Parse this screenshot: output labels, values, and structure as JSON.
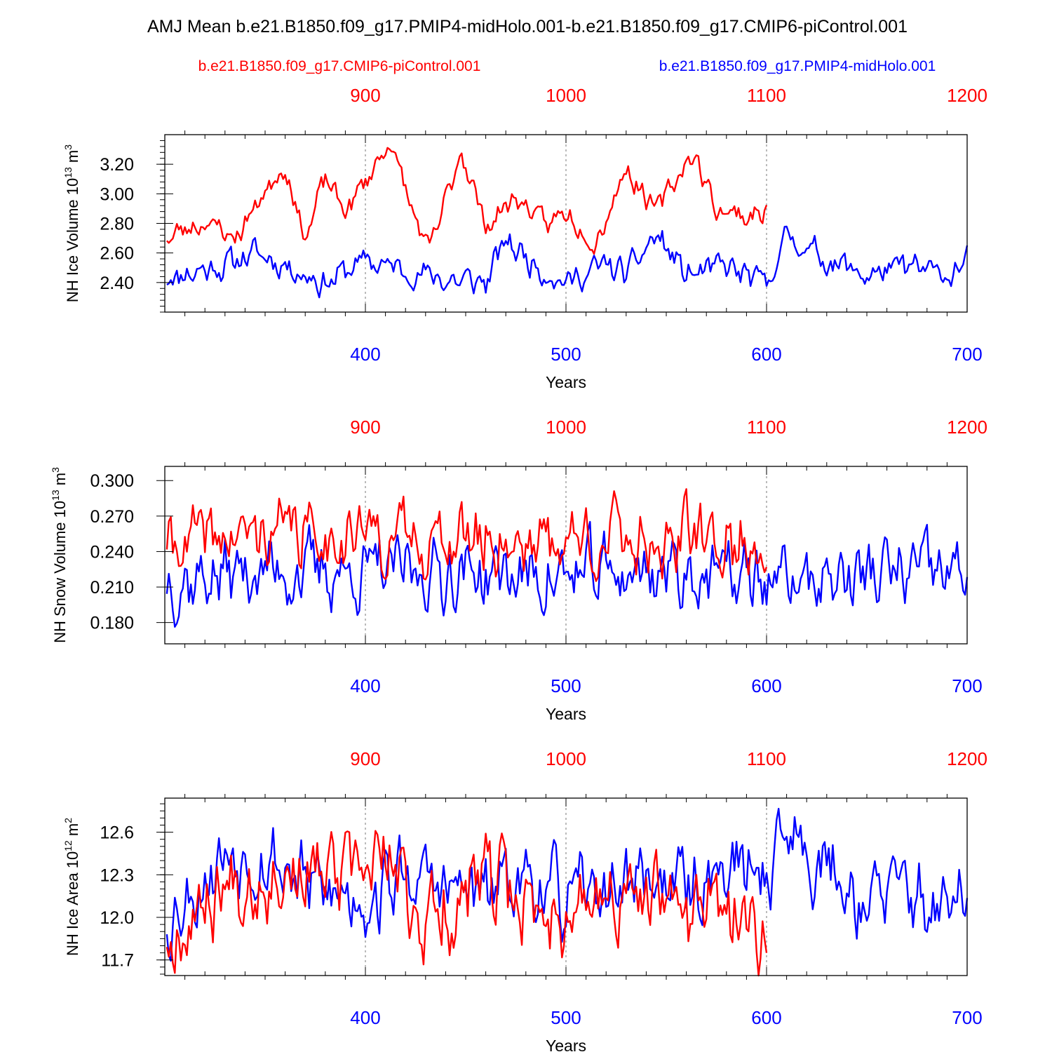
{
  "title": "AMJ Mean b.e21.B1850.f09_g17.PMIP4-midHolo.001-b.e21.B1850.f09_g17.CMIP6-piControl.001",
  "legend": {
    "control_label": "b.e21.B1850.f09_g17.CMIP6-piControl.001",
    "control_color": "#ff0000",
    "midholo_label": "b.e21.B1850.f09_g17.PMIP4-midHolo.001",
    "midholo_color": "#0000ff"
  },
  "chart_data": [
    {
      "type": "line",
      "ylabel": "NH Ice Volume 10^13 m^3",
      "ylabel_base": "NH Ice Volume 10",
      "ylabel_exp": "13",
      "ylabel_unit": " m",
      "ylabel_unit_exp": "3",
      "xlabel": "Years",
      "ylim": [
        2.2,
        3.4
      ],
      "yticks": [
        "3.20",
        "3.00",
        "2.80",
        "2.60",
        "2.40"
      ],
      "yminor_step": 0.04,
      "x_bottom": {
        "range": [
          301,
          700
        ],
        "ticks": [
          "400",
          "500",
          "600",
          "700"
        ]
      },
      "x_top": {
        "range": [
          801,
          1200
        ],
        "ticks": [
          "900",
          "1000",
          "1100",
          "1200"
        ]
      },
      "series": [
        {
          "name": "b.e21.B1850.f09_g17.PMIP4-midHolo.001",
          "axis": "bottom",
          "start": 301,
          "end": 700,
          "mean": 2.5,
          "amp": 0.08,
          "noise": 0.07,
          "lo": 2.22,
          "hi": 2.86,
          "seed": 11,
          "anchors": [
            [
              301,
              2.44
            ],
            [
              330,
              2.52
            ],
            [
              345,
              2.6
            ],
            [
              360,
              2.52
            ],
            [
              380,
              2.4
            ],
            [
              400,
              2.55
            ],
            [
              420,
              2.48
            ],
            [
              440,
              2.42
            ],
            [
              460,
              2.4
            ],
            [
              470,
              2.68
            ],
            [
              485,
              2.52
            ],
            [
              500,
              2.4
            ],
            [
              520,
              2.52
            ],
            [
              530,
              2.45
            ],
            [
              545,
              2.72
            ],
            [
              560,
              2.45
            ],
            [
              580,
              2.5
            ],
            [
              600,
              2.38
            ],
            [
              610,
              2.72
            ],
            [
              630,
              2.55
            ],
            [
              650,
              2.45
            ],
            [
              670,
              2.5
            ],
            [
              690,
              2.45
            ],
            [
              700,
              2.55
            ]
          ]
        },
        {
          "name": "b.e21.B1850.f09_g17.CMIP6-piControl.001",
          "axis": "top",
          "start": 801,
          "end": 1100,
          "mean": 2.95,
          "amp": 0.1,
          "noise": 0.06,
          "lo": 2.45,
          "hi": 3.39,
          "seed": 23,
          "anchors": [
            [
              801,
              2.7
            ],
            [
              820,
              2.82
            ],
            [
              835,
              2.7
            ],
            [
              850,
              3.02
            ],
            [
              860,
              3.2
            ],
            [
              870,
              2.7
            ],
            [
              880,
              3.1
            ],
            [
              890,
              2.88
            ],
            [
              900,
              3.08
            ],
            [
              912,
              3.36
            ],
            [
              925,
              2.82
            ],
            [
              932,
              2.6
            ],
            [
              948,
              3.3
            ],
            [
              960,
              2.78
            ],
            [
              975,
              2.98
            ],
            [
              990,
              2.78
            ],
            [
              1000,
              2.88
            ],
            [
              1015,
              2.68
            ],
            [
              1030,
              3.18
            ],
            [
              1045,
              2.88
            ],
            [
              1063,
              3.28
            ],
            [
              1075,
              2.9
            ],
            [
              1090,
              2.85
            ],
            [
              1100,
              2.88
            ]
          ]
        }
      ]
    },
    {
      "type": "line",
      "ylabel": "NH Snow Volume 10^13 m^3",
      "ylabel_base": "NH Snow Volume 10",
      "ylabel_exp": "13",
      "ylabel_unit": " m",
      "ylabel_unit_exp": "3",
      "xlabel": "Years",
      "ylim": [
        0.162,
        0.312
      ],
      "yticks": [
        "0.300",
        "0.270",
        "0.240",
        "0.210",
        "0.180"
      ],
      "yminor_step": 0,
      "x_bottom": {
        "range": [
          301,
          700
        ],
        "ticks": [
          "400",
          "500",
          "600",
          "700"
        ]
      },
      "x_top": {
        "range": [
          801,
          1200
        ],
        "ticks": [
          "900",
          "1000",
          "1100",
          "1200"
        ]
      },
      "series": [
        {
          "name": "b.e21.B1850.f09_g17.PMIP4-midHolo.001",
          "axis": "bottom",
          "start": 301,
          "end": 700,
          "mean": 0.22,
          "amp": 0.01,
          "noise": 0.022,
          "lo": 0.163,
          "hi": 0.276,
          "seed": 37,
          "anchors": [
            [
              301,
              0.215
            ],
            [
              350,
              0.225
            ],
            [
              400,
              0.222
            ],
            [
              450,
              0.222
            ],
            [
              500,
              0.218
            ],
            [
              550,
              0.225
            ],
            [
              600,
              0.215
            ],
            [
              650,
              0.22
            ],
            [
              700,
              0.222
            ]
          ]
        },
        {
          "name": "b.e21.B1850.f09_g17.CMIP6-piControl.001",
          "axis": "top",
          "start": 801,
          "end": 1100,
          "mean": 0.252,
          "amp": 0.008,
          "noise": 0.022,
          "lo": 0.186,
          "hi": 0.311,
          "seed": 41,
          "anchors": [
            [
              801,
              0.245
            ],
            [
              850,
              0.255
            ],
            [
              900,
              0.255
            ],
            [
              950,
              0.25
            ],
            [
              1000,
              0.25
            ],
            [
              1050,
              0.252
            ],
            [
              1100,
              0.245
            ]
          ]
        }
      ]
    },
    {
      "type": "line",
      "ylabel": "NH Ice Area 10^12 m^2",
      "ylabel_base": "NH Ice Area 10",
      "ylabel_exp": "12",
      "ylabel_unit": " m",
      "ylabel_unit_exp": "2",
      "xlabel": "Years",
      "ylim": [
        11.59,
        12.84
      ],
      "yticks": [
        "12.6",
        "12.3",
        "12.0",
        "11.7"
      ],
      "yminor_step": 0.05,
      "x_bottom": {
        "range": [
          301,
          700
        ],
        "ticks": [
          "400",
          "500",
          "600",
          "700"
        ]
      },
      "x_top": {
        "range": [
          801,
          1200
        ],
        "ticks": [
          "900",
          "1000",
          "1100",
          "1200"
        ]
      },
      "series": [
        {
          "name": "b.e21.B1850.f09_g17.PMIP4-midHolo.001",
          "axis": "bottom",
          "start": 301,
          "end": 700,
          "mean": 12.25,
          "amp": 0.08,
          "noise": 0.2,
          "lo": 11.62,
          "hi": 12.84,
          "seed": 53,
          "anchors": [
            [
              301,
              12.0
            ],
            [
              330,
              12.45
            ],
            [
              350,
              12.45
            ],
            [
              380,
              12.15
            ],
            [
              400,
              12.15
            ],
            [
              420,
              12.3
            ],
            [
              440,
              12.2
            ],
            [
              460,
              12.15
            ],
            [
              480,
              12.3
            ],
            [
              500,
              12.1
            ],
            [
              520,
              12.2
            ],
            [
              540,
              12.3
            ],
            [
              560,
              12.2
            ],
            [
              580,
              12.35
            ],
            [
              600,
              12.3
            ],
            [
              610,
              12.65
            ],
            [
              630,
              12.35
            ],
            [
              650,
              12.1
            ],
            [
              670,
              12.2
            ],
            [
              690,
              12.0
            ],
            [
              700,
              12.2
            ]
          ]
        },
        {
          "name": "b.e21.B1850.f09_g17.CMIP6-piControl.001",
          "axis": "top",
          "start": 801,
          "end": 1100,
          "mean": 12.15,
          "amp": 0.06,
          "noise": 0.22,
          "lo": 11.59,
          "hi": 12.84,
          "seed": 67,
          "anchors": [
            [
              801,
              11.85
            ],
            [
              830,
              12.25
            ],
            [
              860,
              12.35
            ],
            [
              890,
              12.25
            ],
            [
              910,
              12.4
            ],
            [
              930,
              11.95
            ],
            [
              960,
              12.25
            ],
            [
              990,
              12.05
            ],
            [
              1020,
              12.1
            ],
            [
              1050,
              12.1
            ],
            [
              1080,
              12.05
            ],
            [
              1100,
              11.95
            ]
          ]
        }
      ]
    }
  ]
}
